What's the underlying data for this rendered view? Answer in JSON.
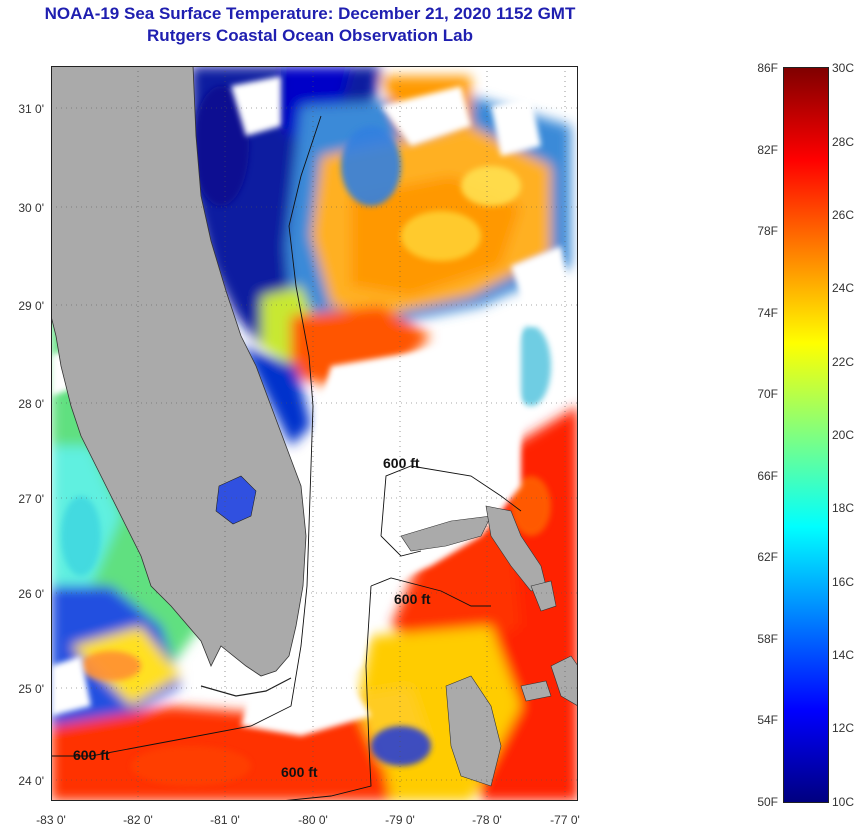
{
  "title_line1": "NOAA-19 Sea Surface Temperature:  December 21, 2020 1152 GMT",
  "title_line2": "Rutgers Coastal Ocean Observation Lab",
  "lat_labels": [
    "31 0'",
    "30 0'",
    "29 0'",
    "28 0'",
    "27 0'",
    "26 0'",
    "25 0'",
    "24 0'"
  ],
  "lon_labels": [
    "-83 0'",
    "-82 0'",
    "-81 0'",
    "-80 0'",
    "-79 0'",
    "-78 0'",
    "-77 0'"
  ],
  "contour_label": "600 ft",
  "colorbar": {
    "fahrenheit": [
      "86F",
      "82F",
      "78F",
      "74F",
      "70F",
      "66F",
      "62F",
      "58F",
      "54F",
      "50F"
    ],
    "celsius": [
      "30C",
      "28C",
      "26C",
      "24C",
      "22C",
      "20C",
      "18C",
      "16C",
      "14C",
      "12C",
      "10C"
    ],
    "colors": [
      "#000080",
      "#0000ff",
      "#0080ff",
      "#00ffff",
      "#80ff80",
      "#ffff00",
      "#ff8000",
      "#ff0000",
      "#800000"
    ]
  },
  "colors": {
    "land": "#aaaaaa",
    "cloud": "#ffffff",
    "title": "#1f1fb0"
  }
}
